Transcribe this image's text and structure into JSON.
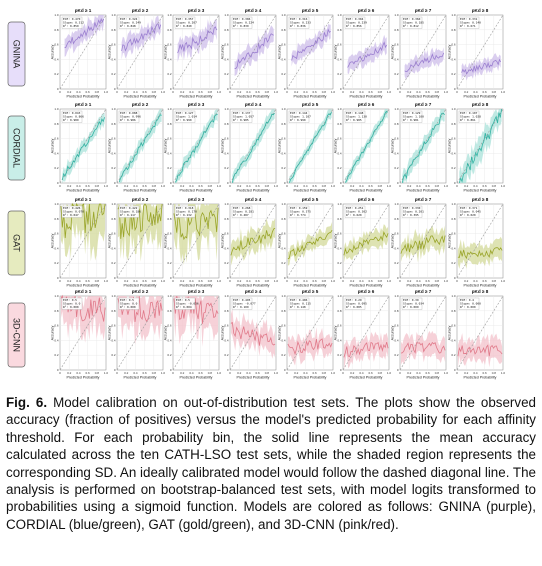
{
  "figure": {
    "caption_label": "Fig. 6.",
    "caption_text": "Model calibration on out-of-distribution test sets. The plots show the observed accuracy (fraction of positives) versus the model's predicted probability for each affinity threshold. For each probability bin, the solid line represents the mean accuracy calculated across the ten CATH-LSO test sets, while the shaded region represents the corresponding SD. An ideally calibrated model would follow the dashed diagonal line. The analysis is performed on bootstrap-balanced test sets, with model logits transformed to probabilities using a sigmoid function. Models are colored as follows: GNINA (purple), CORDIAL (blue/green), GAT (gold/green), and 3D-CNN (pink/red)."
  },
  "chart_data": {
    "type": "line",
    "grid": true,
    "xlabel": "Predicted Probability",
    "ylabel": "Accuracy",
    "xlim": [
      0,
      1
    ],
    "ylim": [
      0,
      1
    ],
    "xticks": [
      "0",
      "0.2",
      "0.4",
      "0.6",
      "0.8",
      "1.0"
    ],
    "yticks": [
      "0",
      "0.2",
      "0.4",
      "0.6",
      "0.8",
      "1.0"
    ],
    "reference_line": "dashed diagonal",
    "thresholds": [
      "pKd ≥ 1",
      "pKd ≥ 2",
      "pKd ≥ 3",
      "pKd ≥ 4",
      "pKd ≥ 5",
      "pKd ≥ 6",
      "pKd ≥ 7",
      "pKd ≥ 8"
    ],
    "models": [
      {
        "name": "GNINA",
        "color": "#9b7fd0",
        "fill": "#cdbde9",
        "label_bg": "#e7defa",
        "panels": [
          {
            "stats": [
              "ECE: 0.470",
              "Slope: 0.312",
              "R²: 0.859"
            ],
            "x_range": [
              0.1,
              0.95
            ],
            "y_start": 0.6,
            "y_end": 0.92,
            "noise": 0.06
          },
          {
            "stats": [
              "ECE: 0.324",
              "Slope: 0.249",
              "R²: 0.848"
            ],
            "x_range": [
              0.1,
              0.95
            ],
            "y_start": 0.55,
            "y_end": 0.85,
            "noise": 0.06
          },
          {
            "stats": [
              "ECE: 0.357",
              "Slope: 0.207",
              "R²: 0.840"
            ],
            "x_range": [
              0.1,
              0.95
            ],
            "y_start": 0.52,
            "y_end": 0.78,
            "noise": 0.07
          },
          {
            "stats": [
              "ECE: 0.306",
              "Slope: 0.224",
              "R²: 0.839"
            ],
            "x_range": [
              0.1,
              0.95
            ],
            "y_start": 0.3,
            "y_end": 0.72,
            "noise": 0.06
          },
          {
            "stats": [
              "ECE: 0.316",
              "Slope: 0.233",
              "R²: 0.836"
            ],
            "x_range": [
              0.1,
              0.95
            ],
            "y_start": 0.4,
            "y_end": 0.78,
            "noise": 0.05
          },
          {
            "stats": [
              "ECE: 0.304",
              "Slope: 0.239",
              "R²: 0.856"
            ],
            "x_range": [
              0.1,
              0.95
            ],
            "y_start": 0.3,
            "y_end": 0.6,
            "noise": 0.05
          },
          {
            "stats": [
              "ECE: 0.360",
              "Slope: 0.185",
              "R²: 0.812"
            ],
            "x_range": [
              0.1,
              0.95
            ],
            "y_start": 0.25,
            "y_end": 0.5,
            "noise": 0.05
          },
          {
            "stats": [
              "ECE: 0.331",
              "Slope: 0.140",
              "R²: 0.671"
            ],
            "x_range": [
              0.1,
              0.95
            ],
            "y_start": 0.22,
            "y_end": 0.38,
            "noise": 0.04
          }
        ]
      },
      {
        "name": "CORDIAL",
        "color": "#33b3a3",
        "fill": "#a9e1d9",
        "label_bg": "#c9eee8",
        "panels": [
          {
            "stats": [
              "ECE: 0.043",
              "Slope: 0.866",
              "R²: 0.989"
            ],
            "x_range": [
              0.05,
              0.97
            ],
            "y_start": 0.08,
            "y_end": 0.9,
            "noise": 0.04
          },
          {
            "stats": [
              "ECE: 0.088",
              "Slope: 0.996",
              "R²: 0.986"
            ],
            "x_range": [
              0.05,
              0.97
            ],
            "y_start": 0.05,
            "y_end": 0.93,
            "noise": 0.04
          },
          {
            "stats": [
              "ECE: 0.127",
              "Slope: 1.014",
              "R²: 0.990"
            ],
            "x_range": [
              0.05,
              0.97
            ],
            "y_start": 0.04,
            "y_end": 0.95,
            "noise": 0.04
          },
          {
            "stats": [
              "ECE: 0.137",
              "Slope: 1.057",
              "R²: 0.985"
            ],
            "x_range": [
              0.05,
              0.97
            ],
            "y_start": 0.03,
            "y_end": 0.97,
            "noise": 0.04
          },
          {
            "stats": [
              "ECE: 0.144",
              "Slope: 1.107",
              "R²: 0.990"
            ],
            "x_range": [
              0.05,
              0.97
            ],
            "y_start": 0.02,
            "y_end": 0.98,
            "noise": 0.03
          },
          {
            "stats": [
              "ECE: 0.148",
              "Slope: 1.130",
              "R²: 0.985"
            ],
            "x_range": [
              0.05,
              0.97
            ],
            "y_start": 0.02,
            "y_end": 0.98,
            "noise": 0.03
          },
          {
            "stats": [
              "ECE: 0.129",
              "Slope: 1.100",
              "R²: 0.981"
            ],
            "x_range": [
              0.05,
              0.97
            ],
            "y_start": 0.02,
            "y_end": 0.97,
            "noise": 0.05
          },
          {
            "stats": [
              "ECE: 0.107",
              "Slope: 1.028",
              "R²: 0.861"
            ],
            "x_range": [
              0.05,
              0.97
            ],
            "y_start": 0.02,
            "y_end": 0.95,
            "noise": 0.09
          }
        ]
      },
      {
        "name": "GAT",
        "color": "#9aa52a",
        "fill": "#d3d99a",
        "label_bg": "#e6ebbf",
        "panels": [
          {
            "stats": [
              "ECE: 0.426",
              "Slope: 0.070",
              "R²: 0.047"
            ],
            "x_range": [
              0.02,
              0.98
            ],
            "y_start": 0.78,
            "y_end": 0.85,
            "noise": 0.25
          },
          {
            "stats": [
              "ECE: 0.422",
              "Slope: 0.186",
              "R²: 0.117"
            ],
            "x_range": [
              0.02,
              0.98
            ],
            "y_start": 0.74,
            "y_end": 0.86,
            "noise": 0.22
          },
          {
            "stats": [
              "ECE: 0.318",
              "Slope: 0.170",
              "R²: 0.132"
            ],
            "x_range": [
              0.02,
              0.98
            ],
            "y_start": 0.68,
            "y_end": 0.8,
            "noise": 0.2
          },
          {
            "stats": [
              "ECE: 0.268",
              "Slope: 0.281",
              "R²: 0.487"
            ],
            "x_range": [
              0.02,
              0.98
            ],
            "y_start": 0.38,
            "y_end": 0.62,
            "noise": 0.08
          },
          {
            "stats": [
              "ECE: 0.159",
              "Slope: 0.375",
              "R²: 0.774"
            ],
            "x_range": [
              0.02,
              0.98
            ],
            "y_start": 0.3,
            "y_end": 0.62,
            "noise": 0.05
          },
          {
            "stats": [
              "ECE: 0.251",
              "Slope: 0.302",
              "R²: 0.620"
            ],
            "x_range": [
              0.02,
              0.98
            ],
            "y_start": 0.35,
            "y_end": 0.58,
            "noise": 0.06
          },
          {
            "stats": [
              "ECE: 0.330",
              "Slope: 0.201",
              "R²: 0.395"
            ],
            "x_range": [
              0.02,
              0.98
            ],
            "y_start": 0.38,
            "y_end": 0.55,
            "noise": 0.08
          },
          {
            "stats": [
              "ECE: 0.371",
              "Slope: 0.045",
              "R²: 0.020"
            ],
            "x_range": [
              0.02,
              0.98
            ],
            "y_start": 0.32,
            "y_end": 0.36,
            "noise": 0.07
          }
        ]
      },
      {
        "name": "3D-CNN",
        "color": "#e07a8a",
        "fill": "#f3c2cb",
        "label_bg": "#fad9df",
        "panels": [
          {
            "stats": [
              "ECE: 0.5",
              "Slope: 0.0",
              "R²: 0.000"
            ],
            "x_range": [
              0.02,
              0.98
            ],
            "y_start": 0.88,
            "y_end": 0.8,
            "noise": 0.18
          },
          {
            "stats": [
              "ECE: 0.5",
              "Slope: 0.0",
              "R²: 0.000"
            ],
            "x_range": [
              0.02,
              0.98
            ],
            "y_start": 0.86,
            "y_end": 0.78,
            "noise": 0.18
          },
          {
            "stats": [
              "ECE: 0.5",
              "Slope: -0.036",
              "R²: 0.004"
            ],
            "x_range": [
              0.02,
              0.98
            ],
            "y_start": 0.84,
            "y_end": 0.76,
            "noise": 0.18
          },
          {
            "stats": [
              "ECE: 0.495",
              "Slope: -0.077",
              "R²: 0.109"
            ],
            "x_range": [
              0.02,
              0.98
            ],
            "y_start": 0.55,
            "y_end": 0.36,
            "noise": 0.1
          },
          {
            "stats": [
              "ECE: 0.406",
              "Slope: 0.115",
              "R²: 0.148"
            ],
            "x_range": [
              0.02,
              0.98
            ],
            "y_start": 0.28,
            "y_end": 0.38,
            "noise": 0.08
          },
          {
            "stats": [
              "ECE: 0.29",
              "Slope: 0.095",
              "R²: 0.085"
            ],
            "x_range": [
              0.02,
              0.98
            ],
            "y_start": 0.25,
            "y_end": 0.32,
            "noise": 0.08
          },
          {
            "stats": [
              "ECE: 0.39",
              "Slope: 0.034",
              "R²: 0.009"
            ],
            "x_range": [
              0.02,
              0.98
            ],
            "y_start": 0.3,
            "y_end": 0.3,
            "noise": 0.08
          },
          {
            "stats": [
              "ECE: 0.4",
              "Slope: 0.000",
              "R²: 0.000"
            ],
            "x_range": [
              0.02,
              0.98
            ],
            "y_start": 0.25,
            "y_end": 0.26,
            "noise": 0.08
          }
        ]
      }
    ]
  }
}
